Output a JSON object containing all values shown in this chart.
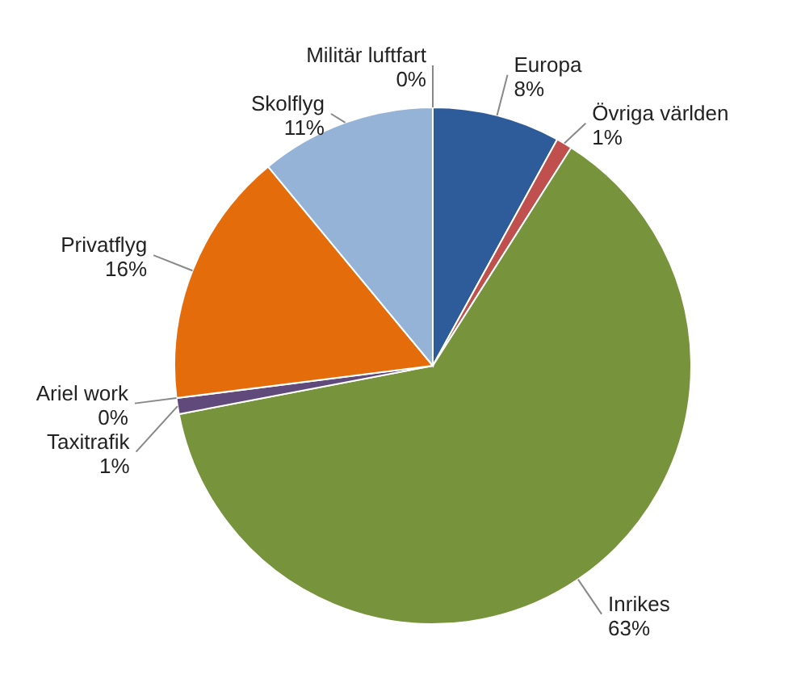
{
  "chart_data": {
    "type": "pie",
    "categories": [
      "Europa",
      "Övriga världen",
      "Inrikes",
      "Taxitrafik",
      "Ariel work",
      "Privatflyg",
      "Skolflyg",
      "Militär luftfart"
    ],
    "values": [
      8,
      1,
      63,
      1,
      0,
      16,
      11,
      0
    ],
    "value_labels": [
      "8%",
      "1%",
      "63%",
      "1%",
      "0%",
      "16%",
      "11%",
      "0%"
    ],
    "colors": [
      "#2e5c9a",
      "#c0504d",
      "#77933c",
      "#604a7b",
      "#4bacc6",
      "#e46c0a",
      "#95b3d7",
      "#d99694"
    ]
  }
}
